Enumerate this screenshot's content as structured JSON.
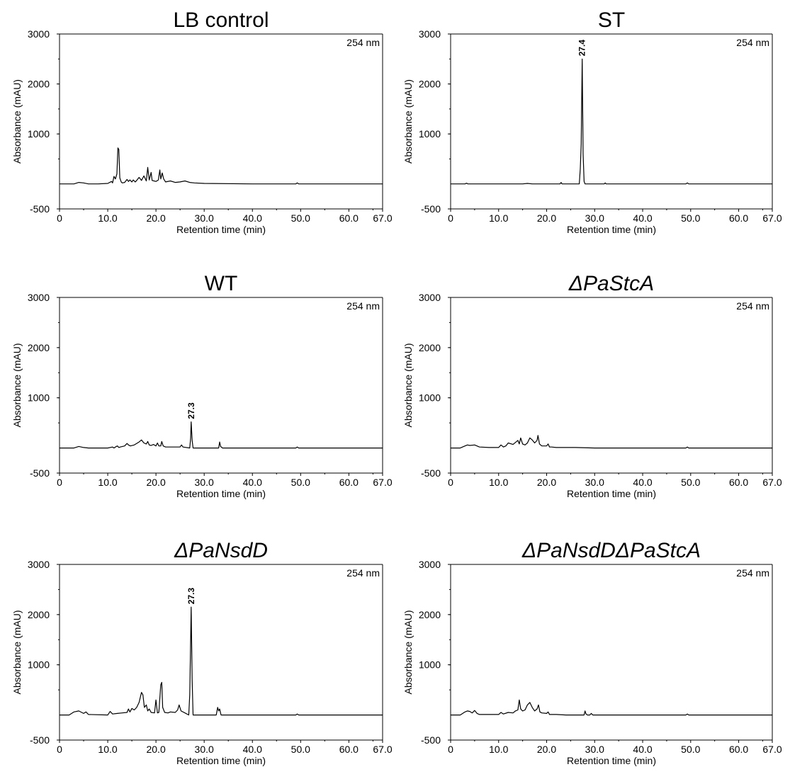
{
  "chart_data": [
    {
      "type": "line",
      "title": "LB control",
      "title_italic": false,
      "wavelength": "254 nm",
      "xlabel": "Retention time (min)",
      "ylabel": "Absorbance (mAU)",
      "xlim": [
        0,
        67
      ],
      "ylim": [
        -500,
        3000
      ],
      "xticks": [
        "0",
        "10.0",
        "20.0",
        "30.0",
        "40.0",
        "50.0",
        "60.0",
        "67.0"
      ],
      "yticks": [
        "-500",
        "1000",
        "2000",
        "3000"
      ],
      "peak_labels": [],
      "series": [
        {
          "x": [
            0,
            3,
            4,
            5,
            6,
            8,
            10,
            10.8,
            11,
            11.3,
            11.6,
            11.9,
            12.1,
            12.3,
            12.5,
            12.8,
            13,
            13.5,
            14,
            14.3,
            14.6,
            15,
            15.3,
            15.7,
            16,
            16.5,
            17,
            17.5,
            18,
            18.3,
            18.6,
            19,
            19.2,
            19.6,
            20,
            20.5,
            20.8,
            21,
            21.3,
            21.6,
            22,
            23,
            24,
            25,
            26,
            27,
            28,
            30,
            40,
            49,
            49.3,
            49.6,
            55,
            67
          ],
          "y": [
            0,
            0,
            30,
            20,
            0,
            0,
            10,
            50,
            20,
            150,
            100,
            200,
            720,
            690,
            120,
            40,
            20,
            30,
            90,
            50,
            80,
            40,
            80,
            40,
            70,
            130,
            70,
            160,
            60,
            330,
            80,
            230,
            70,
            60,
            50,
            80,
            280,
            100,
            220,
            100,
            40,
            60,
            30,
            40,
            60,
            30,
            20,
            10,
            0,
            0,
            20,
            0,
            0,
            0
          ]
        }
      ]
    },
    {
      "type": "line",
      "title": "ST",
      "title_italic": false,
      "wavelength": "254 nm",
      "xlabel": "Retention time (min)",
      "ylabel": "Absorbance (mAU)",
      "xlim": [
        0,
        67
      ],
      "ylim": [
        -500,
        3000
      ],
      "xticks": [
        "0",
        "10.0",
        "20.0",
        "30.0",
        "40.0",
        "50.0",
        "60.0",
        "67.0"
      ],
      "yticks": [
        "-500",
        "1000",
        "2000",
        "3000"
      ],
      "peak_labels": [
        {
          "x": 27.4,
          "y": 2500,
          "text": "27.4"
        }
      ],
      "series": [
        {
          "x": [
            0,
            3,
            3.3,
            3.6,
            10,
            15,
            16,
            17,
            22.8,
            23,
            23.2,
            26.8,
            27.0,
            27.2,
            27.4,
            27.6,
            27.8,
            28,
            32,
            32.2,
            32.4,
            40,
            49,
            49.3,
            49.6,
            67
          ],
          "y": [
            0,
            0,
            15,
            0,
            0,
            0,
            10,
            0,
            0,
            30,
            0,
            0,
            300,
            800,
            2500,
            600,
            50,
            0,
            0,
            20,
            0,
            0,
            0,
            20,
            0,
            0
          ]
        }
      ]
    },
    {
      "type": "line",
      "title": "WT",
      "title_italic": false,
      "wavelength": "254 nm",
      "xlabel": "Retention time (min)",
      "ylabel": "Absorbance (mAU)",
      "xlim": [
        0,
        67
      ],
      "ylim": [
        -500,
        3000
      ],
      "xticks": [
        "0",
        "10.0",
        "20.0",
        "30.0",
        "40.0",
        "50.0",
        "60.0",
        "67.0"
      ],
      "yticks": [
        "-500",
        "1000",
        "2000",
        "3000"
      ],
      "peak_labels": [
        {
          "x": 27.3,
          "y": 520,
          "text": "27.3"
        }
      ],
      "series": [
        {
          "x": [
            0,
            3,
            4,
            5,
            6,
            10,
            11,
            11.3,
            11.6,
            12,
            12.3,
            12.6,
            13.5,
            14,
            14.3,
            14.7,
            15.5,
            16.5,
            17,
            17.5,
            18,
            18.3,
            18.6,
            19,
            19.5,
            20,
            20.3,
            20.6,
            21,
            21.2,
            21.5,
            22,
            25,
            25.3,
            25.6,
            27,
            27.2,
            27.3,
            27.5,
            27.7,
            28,
            33,
            33.2,
            33.4,
            33.8,
            40,
            49,
            49.3,
            49.6,
            55,
            67
          ],
          "y": [
            0,
            0,
            30,
            10,
            0,
            0,
            20,
            0,
            20,
            40,
            10,
            20,
            40,
            90,
            60,
            40,
            60,
            120,
            160,
            100,
            80,
            130,
            60,
            50,
            70,
            40,
            100,
            40,
            40,
            130,
            40,
            20,
            20,
            60,
            20,
            0,
            200,
            520,
            150,
            0,
            0,
            0,
            120,
            30,
            0,
            0,
            0,
            20,
            0,
            0,
            0
          ]
        }
      ]
    },
    {
      "type": "line",
      "title": "ΔPaStcA",
      "title_italic": true,
      "wavelength": "254 nm",
      "xlabel": "Retention time (min)",
      "ylabel": "Absorbance (mAU)",
      "xlim": [
        0,
        67
      ],
      "ylim": [
        -500,
        3000
      ],
      "xticks": [
        "0",
        "10.0",
        "20.0",
        "30.0",
        "40.0",
        "50.0",
        "60.0",
        "67.0"
      ],
      "yticks": [
        "-500",
        "1000",
        "2000",
        "3000"
      ],
      "peak_labels": [],
      "series": [
        {
          "x": [
            0,
            2,
            3,
            3.5,
            4,
            5,
            6,
            8,
            10,
            10.5,
            11,
            11.5,
            12,
            13,
            14,
            14.3,
            14.6,
            15,
            15.5,
            16,
            16.5,
            17,
            17.5,
            18,
            18.2,
            18.5,
            19,
            20,
            20.3,
            20.6,
            21,
            22,
            24,
            26,
            30,
            40,
            49,
            49.3,
            49.6,
            55,
            67
          ],
          "y": [
            0,
            0,
            40,
            60,
            50,
            60,
            20,
            10,
            10,
            60,
            20,
            40,
            100,
            70,
            150,
            80,
            200,
            80,
            60,
            100,
            200,
            160,
            100,
            150,
            250,
            80,
            40,
            40,
            80,
            20,
            20,
            10,
            10,
            10,
            0,
            0,
            0,
            20,
            0,
            0,
            0
          ]
        }
      ]
    },
    {
      "type": "line",
      "title": "ΔPaNsdD",
      "title_italic": true,
      "wavelength": "254 nm",
      "xlabel": "Retention time (min)",
      "ylabel": "Absorbance (mAU)",
      "xlim": [
        0,
        67
      ],
      "ylim": [
        -500,
        3000
      ],
      "xticks": [
        "0",
        "10.0",
        "20.0",
        "30.0",
        "40.0",
        "50.0",
        "60.0",
        "67.0"
      ],
      "yticks": [
        "-500",
        "1000",
        "2000",
        "3000"
      ],
      "peak_labels": [
        {
          "x": 27.3,
          "y": 2150,
          "text": "27.3"
        }
      ],
      "series": [
        {
          "x": [
            0,
            2,
            3,
            4,
            5,
            5.5,
            6,
            10,
            10.5,
            11,
            12,
            13,
            14,
            14.3,
            14.6,
            15,
            15.5,
            16,
            16.5,
            17,
            17.3,
            17.6,
            18,
            18.3,
            18.6,
            19,
            19.7,
            20,
            20.3,
            20.6,
            21,
            21.2,
            21.4,
            21.8,
            22.5,
            23,
            24,
            24.5,
            24.8,
            25.2,
            26,
            26.8,
            27.0,
            27.2,
            27.3,
            27.5,
            27.7,
            28,
            32.5,
            32.8,
            33,
            33.2,
            33.5,
            40,
            49,
            49.3,
            49.6,
            55,
            67
          ],
          "y": [
            0,
            0,
            60,
            80,
            30,
            60,
            10,
            0,
            70,
            20,
            30,
            40,
            50,
            120,
            60,
            130,
            100,
            150,
            250,
            450,
            400,
            150,
            200,
            80,
            120,
            50,
            40,
            300,
            40,
            50,
            600,
            650,
            150,
            50,
            40,
            60,
            50,
            100,
            200,
            80,
            40,
            0,
            400,
            1500,
            2150,
            700,
            0,
            0,
            0,
            150,
            80,
            120,
            0,
            0,
            0,
            20,
            0,
            0,
            0
          ]
        }
      ]
    },
    {
      "type": "line",
      "title": "ΔPaNsdDΔPaStcA",
      "title_italic": true,
      "wavelength": "254 nm",
      "xlabel": "Retention time (min)",
      "ylabel": "Absorbance (mAU)",
      "xlim": [
        0,
        67
      ],
      "ylim": [
        -500,
        3000
      ],
      "xticks": [
        "0",
        "10.0",
        "20.0",
        "30.0",
        "40.0",
        "50.0",
        "60.0",
        "67.0"
      ],
      "yticks": [
        "-500",
        "1000",
        "2000",
        "3000"
      ],
      "peak_labels": [],
      "series": [
        {
          "x": [
            0,
            2,
            3,
            3.5,
            4,
            4.5,
            5,
            5.5,
            6,
            10,
            10.5,
            11,
            12,
            13,
            13.5,
            14,
            14.3,
            14.6,
            15,
            15.5,
            16,
            16.5,
            17,
            17.5,
            18,
            18.3,
            18.6,
            19,
            20,
            20.3,
            20.6,
            22,
            24,
            27.8,
            28,
            28.2,
            28.5,
            29,
            29.3,
            29.6,
            40,
            49,
            49.3,
            49.6,
            55,
            67
          ],
          "y": [
            0,
            0,
            60,
            80,
            70,
            40,
            90,
            30,
            10,
            10,
            50,
            20,
            50,
            40,
            80,
            100,
            300,
            120,
            80,
            100,
            200,
            250,
            150,
            80,
            120,
            200,
            60,
            40,
            30,
            60,
            10,
            10,
            0,
            0,
            80,
            20,
            0,
            0,
            30,
            0,
            0,
            0,
            20,
            0,
            0,
            0
          ]
        }
      ]
    }
  ]
}
